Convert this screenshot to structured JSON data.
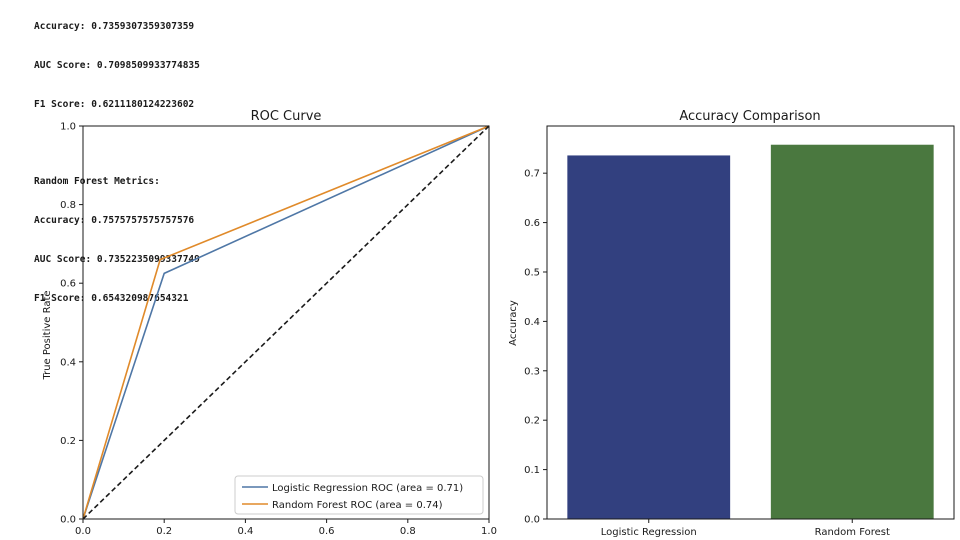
{
  "console": {
    "lr_lines": [
      "Accuracy: 0.7359307359307359",
      "AUC Score: 0.7098509933774835",
      "F1 Score: 0.6211180124223602"
    ],
    "rf_header": "Random Forest Metrics:",
    "rf_lines": [
      "Accuracy: 0.7575757575757576",
      "AUC Score: 0.7352235099337749",
      "F1 Score: 0.654320987654321"
    ]
  },
  "chart_data": [
    {
      "type": "line",
      "title": "ROC Curve",
      "xlabel": "",
      "ylabel": "True Positive Rate",
      "xlim": [
        0,
        1
      ],
      "ylim": [
        0,
        1
      ],
      "xticks": [
        "0.0",
        "0.2",
        "0.4",
        "0.6",
        "0.8",
        "1.0"
      ],
      "yticks": [
        "0.0",
        "0.2",
        "0.4",
        "0.6",
        "0.8",
        "1.0"
      ],
      "grid": false,
      "legend_position": "lower-right",
      "series": [
        {
          "name": "Logistic Regression ROC (area = 0.71)",
          "color": "#4f77a6",
          "x": [
            0,
            0.2,
            1
          ],
          "y": [
            0,
            0.625,
            1
          ]
        },
        {
          "name": "Random Forest ROC (area = 0.74)",
          "color": "#e08a2a",
          "x": [
            0,
            0.19,
            1
          ],
          "y": [
            0,
            0.66,
            1
          ]
        },
        {
          "name": "",
          "color": "#1a1a1a",
          "dashed": true,
          "x": [
            0,
            1
          ],
          "y": [
            0,
            1
          ]
        }
      ]
    },
    {
      "type": "bar",
      "title": "Accuracy Comparison",
      "xlabel": "",
      "ylabel": "Accuracy",
      "categories": [
        "Logistic Regression",
        "Random Forest"
      ],
      "values": [
        0.7359,
        0.7576
      ],
      "colors": [
        "#32407f",
        "#4a783f"
      ],
      "ylim": [
        0,
        0.7955
      ],
      "yticks": [
        "0.0",
        "0.1",
        "0.2",
        "0.3",
        "0.4",
        "0.5",
        "0.6",
        "0.7"
      ],
      "grid": false
    }
  ]
}
